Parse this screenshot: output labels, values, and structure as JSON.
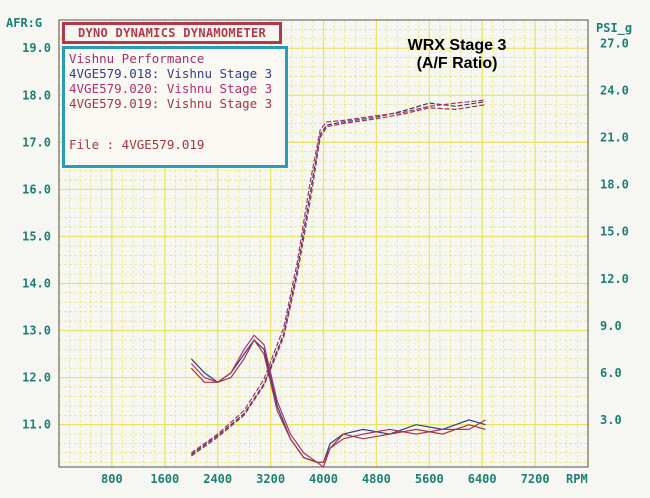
{
  "titles": {
    "main": "DYNO DYNAMICS DYNAMOMETER",
    "overlay_line1": "WRX Stage 3",
    "overlay_line2": "(A/F Ratio)"
  },
  "legend": {
    "heading": "Vishnu Performance",
    "runs": [
      "4VGE579.018: Vishnu Stage 3",
      "4VGE579.020: Vishnu Stage 3",
      "4VGE579.019: Vishnu Stage 3"
    ],
    "file": "File     : 4VGE579.019"
  },
  "colors": {
    "grid": "#e8e46a",
    "axis_text": "#1f7f73",
    "title_border": "#b23a48",
    "legend_border": "#2a9cb8",
    "run_018": "#2e3f8a",
    "run_020": "#b0306e",
    "run_019": "#a33640"
  },
  "chart_data": {
    "type": "line",
    "xlabel": "RPM",
    "ylabel_left": "AFR:G",
    "ylabel_right": "PSI_g",
    "x_ticks": [
      "800",
      "1600",
      "2400",
      "3200",
      "4000",
      "4800",
      "5600",
      "6400",
      "7200"
    ],
    "y_left_ticks": [
      "11.0",
      "12.0",
      "13.0",
      "14.0",
      "15.0",
      "16.0",
      "17.0",
      "18.0",
      "19.0"
    ],
    "y_right_ticks": [
      "3.0",
      "6.0",
      "9.0",
      "12.0",
      "15.0",
      "18.0",
      "21.0",
      "24.0",
      "27.0"
    ],
    "xlim": [
      0,
      8000
    ],
    "ylim_left": [
      10.1,
      19.6
    ],
    "ylim_right": [
      0,
      28.5
    ],
    "grid": true,
    "series": [
      {
        "name": "4VGE579.018",
        "axis": "left",
        "quantity": "AFR",
        "x": [
          2000,
          2200,
          2400,
          2600,
          2800,
          2950,
          3100,
          3300,
          3500,
          3700,
          3900,
          4000,
          4100,
          4300,
          4600,
          5000,
          5400,
          5800,
          6200,
          6450
        ],
        "y": [
          12.4,
          12.1,
          11.9,
          12.1,
          12.5,
          12.8,
          12.6,
          11.4,
          10.7,
          10.3,
          10.2,
          10.2,
          10.6,
          10.8,
          10.9,
          10.8,
          11.0,
          10.9,
          11.1,
          11.0
        ]
      },
      {
        "name": "4VGE579.020",
        "axis": "left",
        "quantity": "AFR",
        "x": [
          2000,
          2200,
          2400,
          2600,
          2800,
          2950,
          3100,
          3300,
          3500,
          3700,
          3900,
          4000,
          4100,
          4300,
          4600,
          5000,
          5400,
          5800,
          6200,
          6450
        ],
        "y": [
          12.3,
          12.0,
          11.9,
          12.1,
          12.6,
          12.9,
          12.7,
          11.5,
          10.8,
          10.4,
          10.2,
          10.1,
          10.5,
          10.7,
          10.8,
          10.9,
          10.8,
          10.9,
          10.9,
          11.1
        ]
      },
      {
        "name": "4VGE579.019",
        "axis": "left",
        "quantity": "AFR",
        "x": [
          2000,
          2200,
          2400,
          2600,
          2800,
          2950,
          3100,
          3300,
          3500,
          3700,
          3900,
          4000,
          4100,
          4300,
          4600,
          5000,
          5400,
          5800,
          6200,
          6450
        ],
        "y": [
          12.2,
          11.9,
          11.9,
          12.0,
          12.4,
          12.8,
          12.5,
          11.3,
          10.7,
          10.3,
          10.2,
          10.2,
          10.5,
          10.8,
          10.7,
          10.8,
          10.9,
          10.8,
          11.0,
          10.9
        ]
      },
      {
        "name": "4VGE579.018",
        "axis": "right",
        "quantity": "Boost",
        "x": [
          2000,
          2400,
          2800,
          3100,
          3400,
          3600,
          3800,
          3950,
          4050,
          4300,
          4800,
          5200,
          5600,
          6000,
          6450
        ],
        "y": [
          0.8,
          2.0,
          3.4,
          5.3,
          8.5,
          12.5,
          17.5,
          21.2,
          21.8,
          22.0,
          22.3,
          22.7,
          23.2,
          23.0,
          23.3
        ]
      },
      {
        "name": "4VGE579.020",
        "axis": "right",
        "quantity": "Boost",
        "x": [
          2000,
          2400,
          2800,
          3100,
          3400,
          3600,
          3800,
          3950,
          4050,
          4300,
          4800,
          5200,
          5600,
          6000,
          6450
        ],
        "y": [
          0.9,
          2.1,
          3.6,
          5.6,
          8.9,
          13.0,
          18.2,
          21.5,
          22.0,
          22.1,
          22.4,
          22.6,
          23.0,
          23.2,
          23.4
        ]
      },
      {
        "name": "4VGE579.019",
        "axis": "right",
        "quantity": "Boost",
        "x": [
          2000,
          2400,
          2800,
          3100,
          3400,
          3600,
          3800,
          3950,
          4050,
          4300,
          4800,
          5200,
          5600,
          6000,
          6450
        ],
        "y": [
          0.7,
          1.9,
          3.3,
          5.2,
          8.3,
          12.2,
          17.0,
          21.0,
          21.7,
          21.9,
          22.2,
          22.5,
          22.9,
          22.8,
          23.1
        ]
      }
    ]
  }
}
